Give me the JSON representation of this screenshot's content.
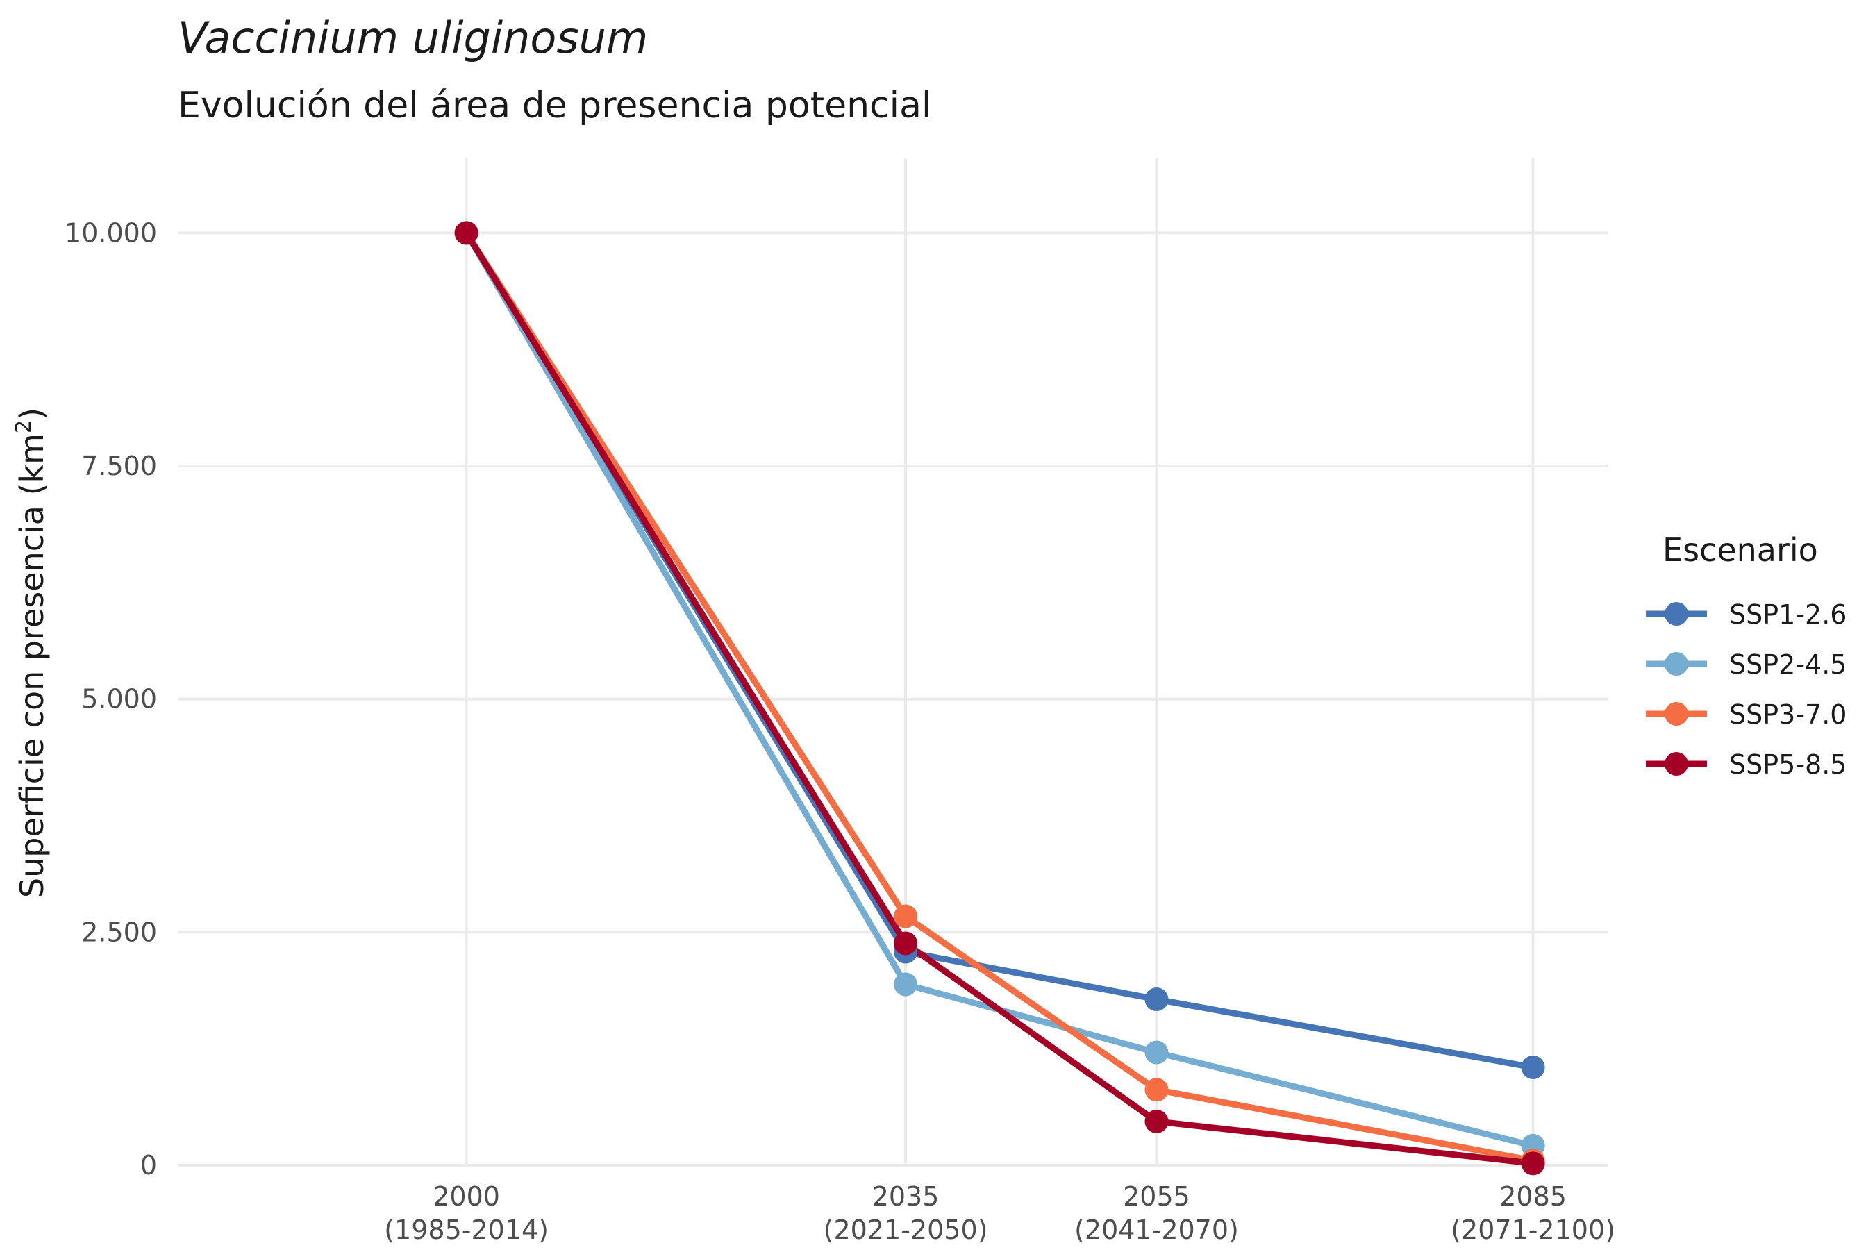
{
  "chart_data": {
    "type": "line",
    "title": "Vaccinium uliginosum",
    "subtitle": "Evolución del área de presencia potencial",
    "ylabel": "Superficie con presencia (km²)",
    "ylabel_parts": [
      "Superficie con presencia (km",
      "2",
      ")"
    ],
    "xlabel": "",
    "x": [
      2000,
      2035,
      2055,
      2085
    ],
    "x_tick_labels": [
      [
        "2000",
        "(1985-2014)"
      ],
      [
        "2035",
        "(2021-2050)"
      ],
      [
        "2055",
        "(2041-2070)"
      ],
      [
        "2085",
        "(2071-2100)"
      ]
    ],
    "y_ticks": [
      0,
      2500,
      5000,
      7500,
      10000
    ],
    "y_tick_labels": [
      "0",
      "2.500",
      "5.000",
      "7.500",
      "10.000"
    ],
    "xlim": [
      1977,
      2091
    ],
    "ylim": [
      0,
      10800
    ],
    "grid": true,
    "legend": {
      "title": "Escenario",
      "position": "right"
    },
    "series": [
      {
        "name": "SSP1-2.6",
        "color": "#4575b4",
        "values": [
          10000,
          2290,
          1780,
          1050
        ]
      },
      {
        "name": "SSP2-4.5",
        "color": "#74add1",
        "values": [
          10000,
          1940,
          1210,
          210
        ]
      },
      {
        "name": "SSP3-7.0",
        "color": "#f46d43",
        "values": [
          10000,
          2670,
          810,
          50
        ]
      },
      {
        "name": "SSP5-8.5",
        "color": "#a50026",
        "values": [
          10000,
          2380,
          470,
          20
        ]
      }
    ]
  }
}
